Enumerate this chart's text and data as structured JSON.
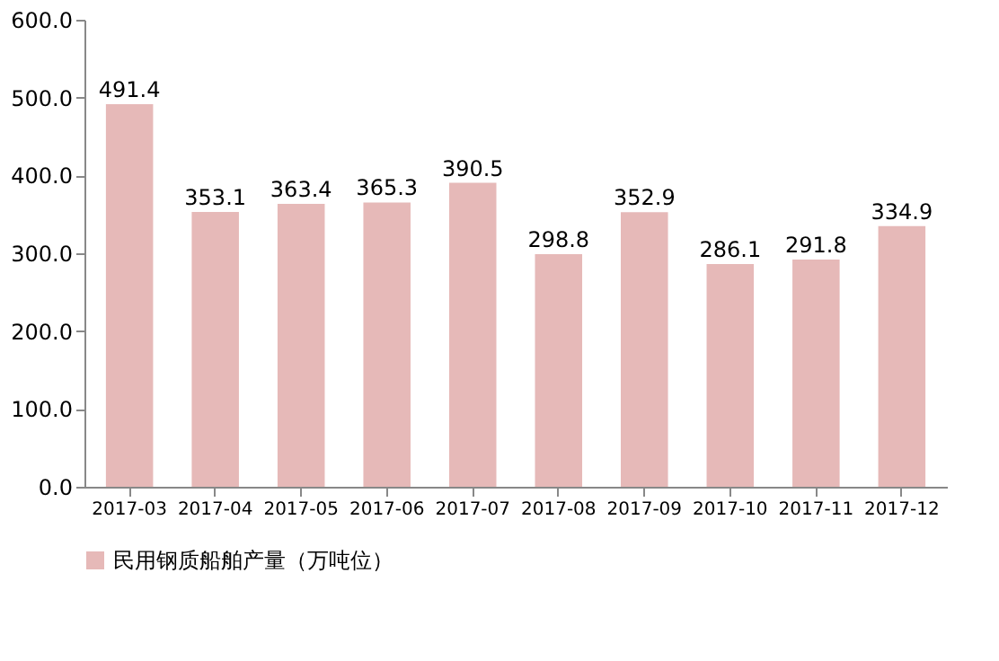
{
  "chart_data": {
    "type": "bar",
    "categories": [
      "2017-03",
      "2017-04",
      "2017-05",
      "2017-06",
      "2017-07",
      "2017-08",
      "2017-09",
      "2017-10",
      "2017-11",
      "2017-12"
    ],
    "series": [
      {
        "name": "民用钢质船舶产量（万吨位）",
        "color": "#e6b9b8",
        "values": [
          491.4,
          353.1,
          363.4,
          365.3,
          390.5,
          298.8,
          352.9,
          286.1,
          291.8,
          334.9
        ]
      }
    ],
    "ylim": [
      0,
      600
    ],
    "yticks": [
      {
        "value": 0,
        "label": "0.0"
      },
      {
        "value": 100,
        "label": "100.0"
      },
      {
        "value": 200,
        "label": "200.0"
      },
      {
        "value": 300,
        "label": "300.0"
      },
      {
        "value": 400,
        "label": "400.0"
      },
      {
        "value": 500,
        "label": "500.0"
      },
      {
        "value": 600,
        "label": "600.0"
      }
    ],
    "data_labels": true,
    "legend": "bottom",
    "grid": false
  }
}
